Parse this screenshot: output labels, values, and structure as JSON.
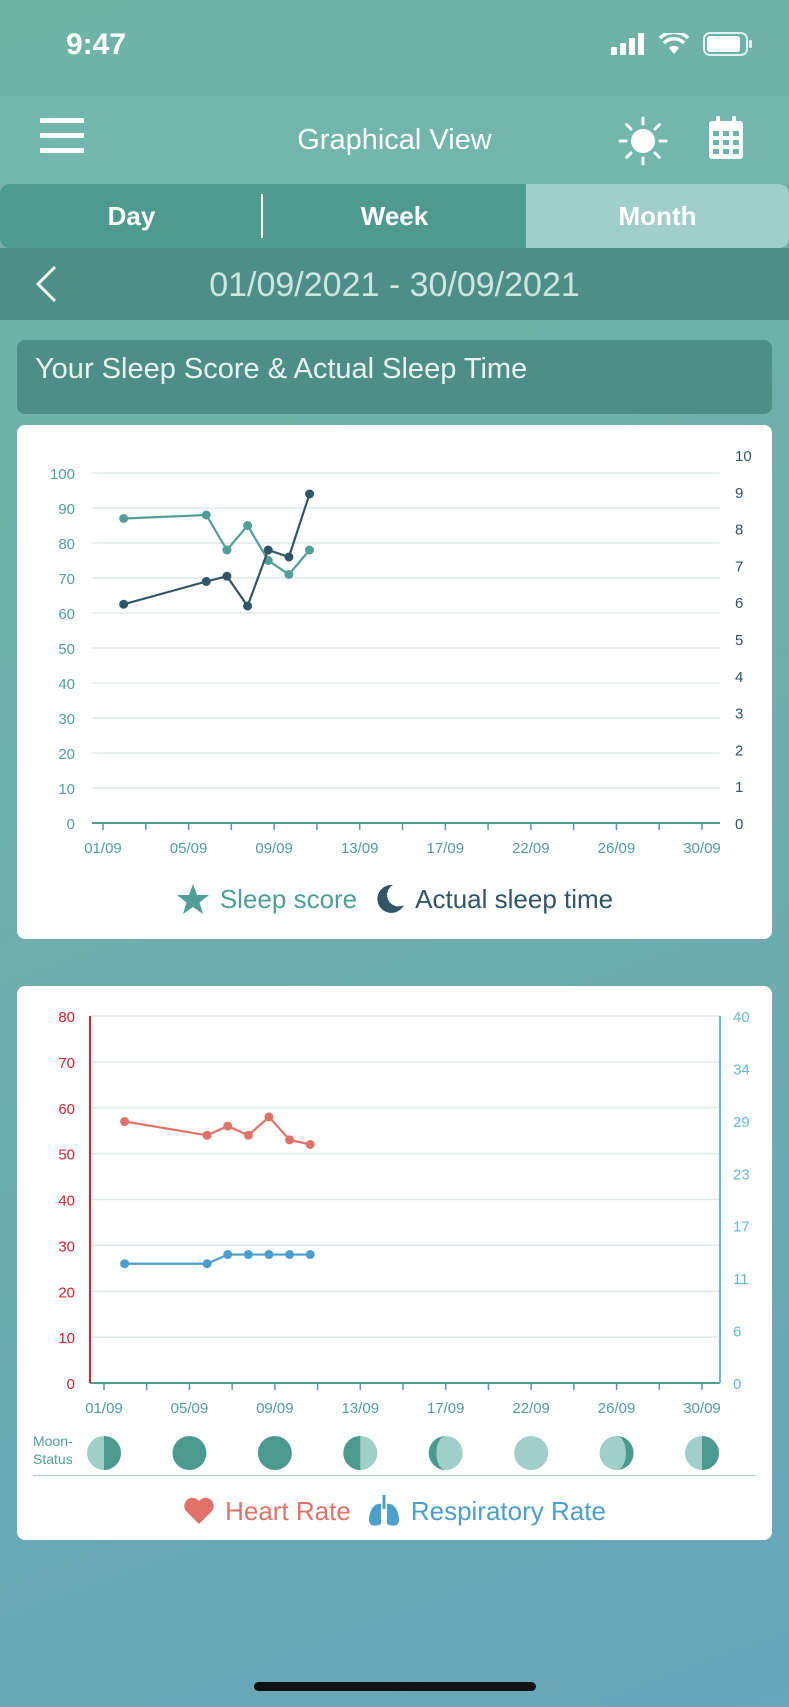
{
  "status": {
    "time": "9:47"
  },
  "nav": {
    "title": "Graphical View"
  },
  "tabs": [
    {
      "label": "Day",
      "active": false
    },
    {
      "label": "Week",
      "active": false
    },
    {
      "label": "Month",
      "active": true
    }
  ],
  "date_range": "01/09/2021 - 30/09/2021",
  "section_title": "Your Sleep Score & Actual Sleep Time",
  "legend1": {
    "score": "Sleep score",
    "sleep": "Actual sleep time"
  },
  "legend2": {
    "heart": "Heart Rate",
    "resp": "Respiratory Rate"
  },
  "moon_label": [
    "Moon-",
    "Status"
  ],
  "colors": {
    "score": "#4f9f96",
    "sleep": "#2f5566",
    "heart": "#e0726a",
    "resp": "#4a9fcd",
    "heart_axis": "#d8202e",
    "resp_axis": "#68b7d6"
  },
  "chart_data": [
    {
      "type": "line",
      "x_ticks": [
        "01/09",
        "05/09",
        "09/09",
        "13/09",
        "17/09",
        "22/09",
        "26/09",
        "30/09"
      ],
      "y_left_ticks": [
        "0",
        "10",
        "20",
        "30",
        "40",
        "50",
        "60",
        "70",
        "80",
        "90",
        "100"
      ],
      "y_right_ticks": [
        "0",
        "1",
        "2",
        "3",
        "4",
        "5",
        "6",
        "7",
        "8",
        "9",
        "10"
      ],
      "ylim_left": [
        0,
        100
      ],
      "ylim_right": [
        0,
        10
      ],
      "xlim_days": [
        1,
        30
      ],
      "series": [
        {
          "name": "Sleep score",
          "axis": "left",
          "x": [
            2,
            6,
            7,
            8,
            9,
            10,
            11
          ],
          "values": [
            87,
            88,
            78,
            85,
            75,
            71,
            78
          ]
        },
        {
          "name": "Actual sleep time",
          "axis": "right",
          "x": [
            2,
            6,
            7,
            8,
            9,
            10,
            11
          ],
          "values": [
            6.25,
            6.9,
            7.05,
            6.2,
            7.8,
            7.6,
            9.4
          ]
        }
      ]
    },
    {
      "type": "line",
      "x_ticks": [
        "01/09",
        "05/09",
        "09/09",
        "13/09",
        "17/09",
        "22/09",
        "26/09",
        "30/09"
      ],
      "y_left_ticks": [
        "0",
        "10",
        "20",
        "30",
        "40",
        "50",
        "60",
        "70",
        "80"
      ],
      "y_right_ticks": [
        "0",
        "6",
        "11",
        "17",
        "23",
        "29",
        "34",
        "40"
      ],
      "ylim_left": [
        0,
        80
      ],
      "ylim_right": [
        0,
        40
      ],
      "xlim_days": [
        1,
        30
      ],
      "series": [
        {
          "name": "Heart Rate",
          "axis": "left",
          "x": [
            2,
            6,
            7,
            8,
            9,
            10,
            11
          ],
          "values": [
            57,
            54,
            56,
            54,
            58,
            53,
            52
          ]
        },
        {
          "name": "Respiratory Rate",
          "axis": "right",
          "x": [
            2,
            6,
            7,
            8,
            9,
            10,
            11
          ],
          "values": [
            13,
            13,
            14,
            14,
            14,
            14,
            14
          ]
        }
      ],
      "moon_phases": [
        "first-quarter",
        "full",
        "full",
        "last-quarter",
        "waning-crescent",
        "new",
        "waxing-crescent",
        "first-quarter"
      ]
    }
  ]
}
